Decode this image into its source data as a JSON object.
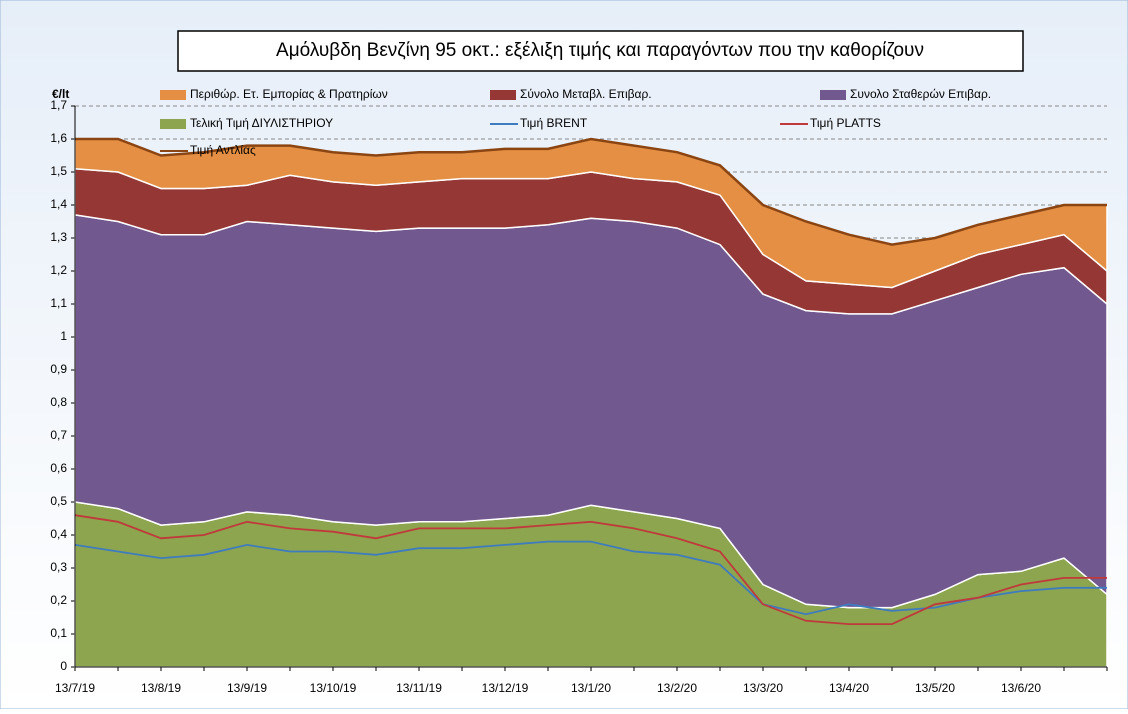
{
  "chart_data": {
    "type": "stacked-area",
    "title": "Αμόλυβδη Βενζίνη 95 οκτ.: εξέλιξη τιμής και παραγόντων που την καθορίζουν",
    "y_label": "€/lt",
    "categories": [
      "13/7/19",
      null,
      "13/8/19",
      null,
      "13/9/19",
      null,
      "13/10/19",
      null,
      "13/11/19",
      null,
      "13/12/19",
      null,
      "13/1/20",
      null,
      "13/2/20",
      null,
      "13/3/20",
      null,
      "13/4/20",
      null,
      "13/5/20",
      null,
      "13/6/20",
      null,
      null
    ],
    "series": [
      {
        "name": "Περιθώρ. Ετ. Εμπορίας & Πρατηρίων",
        "kind": "area",
        "color": "#e48f43",
        "values": [
          0.09,
          0.1,
          0.1,
          0.11,
          0.12,
          0.09,
          0.09,
          0.09,
          0.09,
          0.08,
          0.09,
          0.09,
          0.1,
          0.1,
          0.09,
          0.09,
          0.15,
          0.18,
          0.15,
          0.13,
          0.1,
          0.09,
          0.09,
          0.09,
          0.2
        ]
      },
      {
        "name": "Σύνολο Μεταβλ. Επιβαρ.",
        "kind": "area",
        "color": "#953735",
        "values": [
          0.14,
          0.15,
          0.14,
          0.14,
          0.11,
          0.15,
          0.14,
          0.14,
          0.14,
          0.15,
          0.15,
          0.14,
          0.14,
          0.13,
          0.14,
          0.15,
          0.12,
          0.09,
          0.09,
          0.08,
          0.09,
          0.1,
          0.09,
          0.1,
          0.1
        ]
      },
      {
        "name": "Συνολο Σταθερών Επιβαρ.",
        "kind": "area",
        "color": "#71588f",
        "values": [
          0.87,
          0.87,
          0.88,
          0.87,
          0.88,
          0.88,
          0.89,
          0.89,
          0.89,
          0.89,
          0.88,
          0.88,
          0.87,
          0.88,
          0.88,
          0.86,
          0.88,
          0.89,
          0.89,
          0.89,
          0.89,
          0.87,
          0.9,
          0.88,
          0.88
        ]
      },
      {
        "name": "Τελική Τιμή ΔΙΥΛΙΣΤΗΡΙΟΥ",
        "kind": "area",
        "color": "#8ca54e",
        "values": [
          0.5,
          0.48,
          0.43,
          0.44,
          0.47,
          0.46,
          0.44,
          0.43,
          0.44,
          0.44,
          0.45,
          0.46,
          0.49,
          0.47,
          0.45,
          0.42,
          0.25,
          0.19,
          0.18,
          0.18,
          0.22,
          0.28,
          0.29,
          0.33,
          0.22
        ]
      },
      {
        "name": "Τιμή BRENT",
        "kind": "line",
        "color": "#3f7bbf",
        "values": [
          0.37,
          0.35,
          0.33,
          0.34,
          0.37,
          0.35,
          0.35,
          0.34,
          0.36,
          0.36,
          0.37,
          0.38,
          0.38,
          0.35,
          0.34,
          0.31,
          0.19,
          0.16,
          0.19,
          0.17,
          0.18,
          0.21,
          0.23,
          0.24,
          0.24
        ]
      },
      {
        "name": "Τιμή PLATTS",
        "kind": "line",
        "color": "#c0393b",
        "values": [
          0.46,
          0.44,
          0.39,
          0.4,
          0.44,
          0.42,
          0.41,
          0.39,
          0.42,
          0.42,
          0.42,
          0.43,
          0.44,
          0.42,
          0.39,
          0.35,
          0.19,
          0.14,
          0.13,
          0.13,
          0.19,
          0.21,
          0.25,
          0.27,
          0.27
        ]
      },
      {
        "name": "Τιμή Αντλίας",
        "kind": "line",
        "color": "#8b4513",
        "values": [
          1.6,
          1.6,
          1.55,
          1.56,
          1.58,
          1.58,
          1.56,
          1.55,
          1.56,
          1.56,
          1.57,
          1.57,
          1.6,
          1.58,
          1.56,
          1.52,
          1.4,
          1.35,
          1.31,
          1.28,
          1.3,
          1.34,
          1.37,
          1.4,
          1.4
        ]
      }
    ],
    "ylim": [
      0,
      1.7
    ],
    "yticks": [
      0,
      {
        "value": 0.1,
        "label": "0,1"
      },
      {
        "value": 0.2,
        "label": "0,2"
      },
      {
        "value": 0.3,
        "label": "0,3"
      },
      {
        "value": 0.4,
        "label": "0,4"
      },
      {
        "value": 0.5,
        "label": "0,5"
      },
      {
        "value": 0.6,
        "label": "0,6"
      },
      {
        "value": 0.7,
        "label": "0,7"
      },
      {
        "value": 0.8,
        "label": "0,8"
      },
      {
        "value": 0.9,
        "label": "0,9"
      },
      1,
      {
        "value": 1.1,
        "label": "1,1"
      },
      {
        "value": 1.2,
        "label": "1,2"
      },
      {
        "value": 1.3,
        "label": "1,3"
      },
      {
        "value": 1.4,
        "label": "1,4"
      },
      {
        "value": 1.5,
        "label": "1,5"
      },
      {
        "value": 1.6,
        "label": "1,6"
      },
      {
        "value": 1.7,
        "label": "1,7"
      }
    ],
    "grid": true
  }
}
